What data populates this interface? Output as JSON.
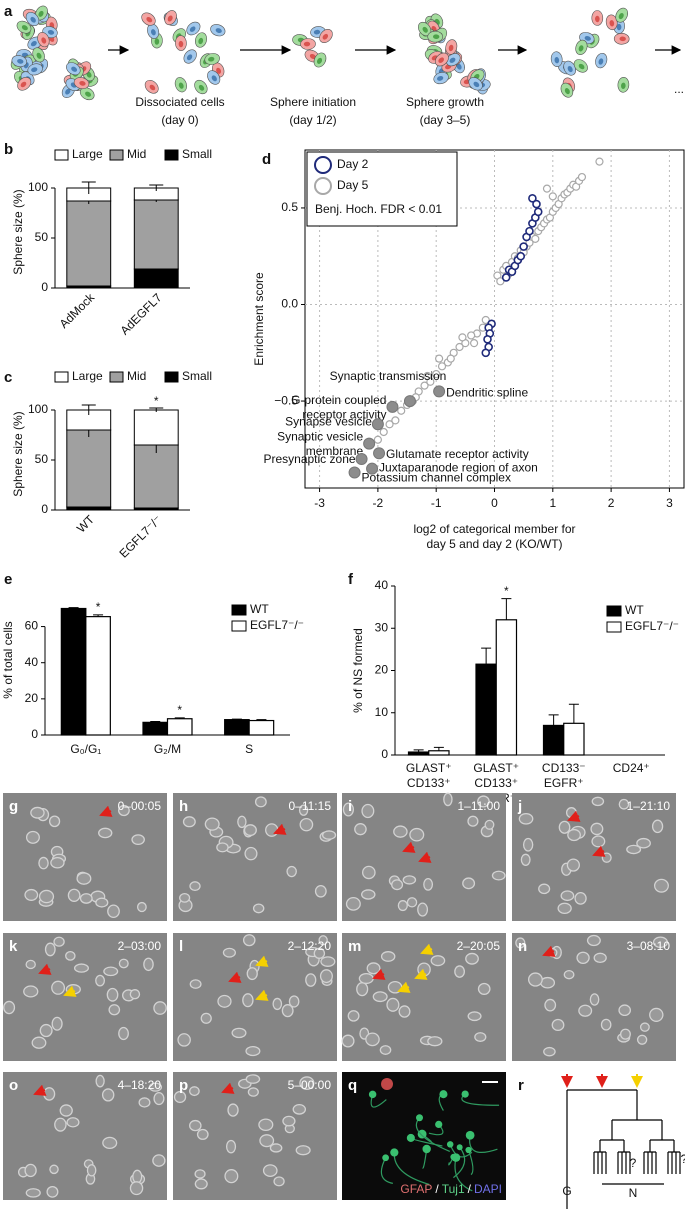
{
  "panel_letters": [
    "a",
    "b",
    "c",
    "d",
    "e",
    "f",
    "g",
    "h",
    "i",
    "j",
    "k",
    "l",
    "m",
    "n",
    "o",
    "p",
    "q",
    "r"
  ],
  "schematic": {
    "steps": [
      {
        "label": "Dissociated cells",
        "detail": "(day 0)"
      },
      {
        "label": "Sphere initiation",
        "detail": "(day 1/2)"
      },
      {
        "label": "Sphere growth",
        "detail": "(day 3–5)"
      }
    ],
    "ellipsis": "..."
  },
  "chart_data": [
    {
      "type": "stacked_bar",
      "categories": [
        "AdMock",
        "AdEGFL7"
      ],
      "xtick_rotation": 45,
      "ylabel": "Sphere size (%)",
      "ylim": [
        0,
        112
      ],
      "yticks": [
        0,
        50,
        100
      ],
      "legend": "top",
      "series": [
        {
          "name": "Small",
          "color": "#000000",
          "values": [
            2,
            19
          ],
          "errors": [
            1,
            3
          ],
          "annotations": [
            null,
            "*"
          ]
        },
        {
          "name": "Mid",
          "color": "#a0a0a0",
          "values": [
            85,
            69
          ],
          "errors": [
            3,
            2
          ],
          "annotations": [
            null,
            null
          ]
        },
        {
          "name": "Large",
          "color": "#ffffff",
          "values": [
            13,
            12
          ],
          "errors": [
            6,
            3
          ],
          "annotations": [
            null,
            null
          ]
        }
      ]
    },
    {
      "type": "stacked_bar",
      "categories": [
        "WT",
        "EGFL7⁻/⁻"
      ],
      "xtick_rotation": 45,
      "ylabel": "Sphere size (%)",
      "ylim": [
        0,
        112
      ],
      "yticks": [
        0,
        50,
        100
      ],
      "legend": "top",
      "series": [
        {
          "name": "Small",
          "color": "#000000",
          "values": [
            3,
            2
          ],
          "errors": [
            1,
            1
          ],
          "annotations": [
            null,
            null
          ]
        },
        {
          "name": "Mid",
          "color": "#a0a0a0",
          "values": [
            77,
            63
          ],
          "errors": [
            7,
            8
          ],
          "annotations": [
            null,
            null
          ]
        },
        {
          "name": "Large",
          "color": "#ffffff",
          "values": [
            20,
            35
          ],
          "errors": [
            5,
            2
          ],
          "annotations": [
            null,
            "*"
          ]
        }
      ]
    },
    {
      "type": "scatter",
      "ylabel": "Enrichment score",
      "xlabel": [
        "log2 of categorical member for",
        "day 5 and day 2 (KO/WT)"
      ],
      "xlim": [
        -3.25,
        3.25
      ],
      "ylim": [
        -0.95,
        0.8
      ],
      "xticks": [
        -3,
        -2,
        -1,
        0,
        1,
        2,
        3
      ],
      "yticks": [
        {
          "value": -0.5,
          "label": "−0.5"
        },
        {
          "value": 0,
          "label": "0.0"
        },
        0.5
      ],
      "grid": true,
      "legend": "upper left",
      "legend_note": "Benj. Hoch. FDR < 0.01",
      "series": [
        {
          "name": "Day 2",
          "color": "#1f2a7a",
          "x": [
            0.2,
            0.25,
            0.3,
            0.35,
            0.4,
            0.45,
            0.5,
            0.55,
            0.6,
            0.65,
            0.7,
            0.75,
            0.72,
            0.65,
            -0.05,
            -0.1,
            -0.08,
            -0.12,
            -0.1,
            -0.15
          ],
          "y": [
            0.14,
            0.18,
            0.17,
            0.2,
            0.23,
            0.25,
            0.3,
            0.35,
            0.38,
            0.42,
            0.45,
            0.48,
            0.52,
            0.55,
            -0.1,
            -0.12,
            -0.15,
            -0.18,
            -0.22,
            -0.25
          ]
        },
        {
          "name": "Day 5",
          "color": "#a8a8a8",
          "x": [
            0.05,
            0.1,
            0.15,
            0.2,
            0.25,
            0.3,
            0.35,
            0.4,
            0.45,
            0.5,
            0.55,
            0.6,
            0.65,
            0.7,
            0.75,
            0.8,
            0.85,
            0.9,
            0.95,
            1.0,
            1.05,
            1.1,
            1.15,
            1.2,
            1.25,
            1.3,
            1.35,
            1.4,
            1.45,
            1.5,
            1.8,
            0.9,
            1.0,
            -0.1,
            -0.2,
            -0.3,
            -0.4,
            -0.5,
            -0.6,
            -0.7,
            -0.8,
            -0.9,
            -1.0,
            -1.1,
            -1.2,
            -1.3,
            -1.4,
            -1.5,
            -1.6,
            -1.7,
            -1.8,
            -1.9,
            -2.0,
            -0.35,
            -0.55,
            -0.75,
            -0.95,
            -1.15,
            -1.35,
            -0.15
          ],
          "y": [
            0.15,
            0.12,
            0.18,
            0.2,
            0.16,
            0.22,
            0.25,
            0.24,
            0.28,
            0.27,
            0.3,
            0.32,
            0.35,
            0.34,
            0.38,
            0.4,
            0.42,
            0.44,
            0.45,
            0.48,
            0.5,
            0.52,
            0.55,
            0.57,
            0.58,
            0.6,
            0.62,
            0.61,
            0.64,
            0.66,
            0.74,
            0.6,
            0.56,
            -0.1,
            -0.12,
            -0.15,
            -0.16,
            -0.2,
            -0.22,
            -0.25,
            -0.3,
            -0.32,
            -0.36,
            -0.4,
            -0.42,
            -0.45,
            -0.5,
            -0.52,
            -0.55,
            -0.6,
            -0.62,
            -0.66,
            -0.7,
            -0.2,
            -0.17,
            -0.28,
            -0.28,
            -0.37,
            -0.48,
            -0.08
          ]
        }
      ],
      "highlighted": {
        "color": "#8c8c8c",
        "x": [
          -1.45,
          -0.95,
          -1.75,
          -2.0,
          -2.15,
          -1.98,
          -2.28,
          -2.1,
          -2.4
        ],
        "y": [
          -0.5,
          -0.45,
          -0.53,
          -0.62,
          -0.72,
          -0.77,
          -0.8,
          -0.85,
          -0.87
        ],
        "labels": [
          [
            "Synaptic transmission"
          ],
          [
            "Dendritic spline"
          ],
          [
            "G-protein coupled",
            "receptor activity"
          ],
          [
            "Synapse vesicle"
          ],
          [
            "Synaptic vesicle",
            "membrane"
          ],
          [
            "Glutamate receptor activity"
          ],
          [
            "Presynaptic zone"
          ],
          [
            "Juxtaparanode region of axon"
          ],
          [
            "Potassium channel complex"
          ]
        ]
      }
    },
    {
      "type": "bar",
      "categories": [
        "G₀/G₁",
        "G₂/M",
        "S"
      ],
      "ylabel": "% of total cells",
      "ylim": [
        0,
        83
      ],
      "yticks": [
        0,
        20,
        40,
        60
      ],
      "legend": "upper right",
      "series": [
        {
          "name": "WT",
          "color": "#000000",
          "values": [
            70,
            7,
            8.5
          ],
          "errors": [
            0.5,
            0.5,
            0.3
          ],
          "annotations": [
            null,
            null,
            null
          ]
        },
        {
          "name": "EGFL7⁻/⁻",
          "color": "#ffffff",
          "values": [
            65.5,
            9,
            8
          ],
          "errors": [
            1,
            0.5,
            0.5
          ],
          "annotations": [
            "*",
            "*",
            null
          ]
        }
      ]
    },
    {
      "type": "bar",
      "categories": [
        [
          "GLAST⁺",
          "CD133⁺"
        ],
        [
          "GLAST⁺",
          "CD133⁺",
          "EGFR⁺"
        ],
        [
          "CD133⁻",
          "EGFR⁺"
        ],
        [
          "CD24⁺"
        ]
      ],
      "ylabel": "% of NS formed",
      "ylim": [
        0,
        40
      ],
      "yticks": [
        0,
        10,
        20,
        30,
        40
      ],
      "legend": "upper right",
      "series": [
        {
          "name": "WT",
          "color": "#000000",
          "values": [
            0.7,
            21.5,
            7,
            0
          ],
          "errors": [
            0.5,
            3.8,
            2.5,
            0
          ],
          "annotations": [
            null,
            null,
            null,
            null
          ]
        },
        {
          "name": "EGFL7⁻/⁻",
          "color": "#ffffff",
          "values": [
            1,
            32,
            7.5,
            0
          ],
          "errors": [
            0.8,
            5,
            4.5,
            0
          ],
          "annotations": [
            null,
            "*",
            null,
            null
          ]
        }
      ]
    }
  ],
  "timelapse": {
    "timestamps": [
      "0–00:05",
      "0–11:15",
      "1–11:00",
      "1–21:10",
      "2–03:00",
      "2–12:20",
      "2–20:05",
      "3–08:10",
      "4–18:20",
      "5–00:00"
    ]
  },
  "stain": {
    "channels": [
      {
        "name": "GFAP",
        "color": "#e07070"
      },
      {
        "name": "Tuj1",
        "color": "#5fd38a"
      },
      {
        "name": "DAPI",
        "color": "#7070e8"
      }
    ],
    "separator": "/"
  },
  "lineage": {
    "glia": "G",
    "neuron": "N",
    "unknown": [
      "?",
      "?"
    ]
  }
}
